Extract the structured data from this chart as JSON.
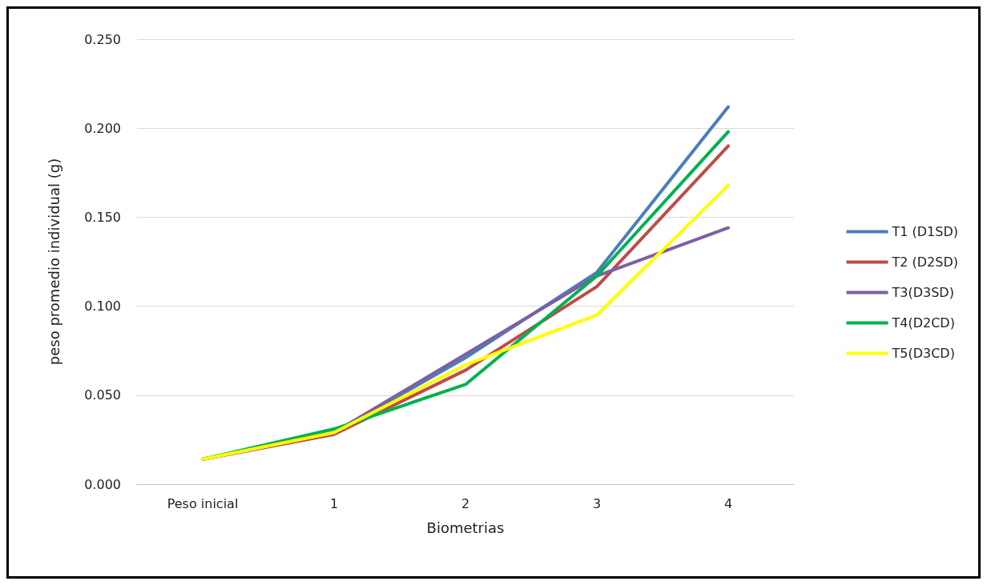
{
  "chart_data": {
    "type": "line",
    "xlabel": "Biometrias",
    "ylabel": "peso promedio individual (g)",
    "categories": [
      "Peso inicial",
      "1",
      "2",
      "3",
      "4"
    ],
    "series": [
      {
        "name": "T1 (D1SD)",
        "color": "#4a7ebb",
        "values": [
          0.014,
          0.029,
          0.071,
          0.119,
          0.212
        ]
      },
      {
        "name": "T2 (D2SD)",
        "color": "#be4b48",
        "values": [
          0.014,
          0.028,
          0.064,
          0.111,
          0.19
        ]
      },
      {
        "name": "T3(D3SD)",
        "color": "#7d60a0",
        "values": [
          0.014,
          0.029,
          0.073,
          0.117,
          0.144
        ]
      },
      {
        "name": "T4(D2CD)",
        "color": "#00b050",
        "values": [
          0.014,
          0.031,
          0.056,
          0.117,
          0.198
        ]
      },
      {
        "name": "T5(D3CD)",
        "color": "#ffff00",
        "values": [
          0.014,
          0.029,
          0.067,
          0.095,
          0.168
        ]
      }
    ],
    "ylim": [
      0,
      0.25
    ],
    "yticks": [
      {
        "value": 0,
        "label": "0.000"
      },
      {
        "value": 0.05,
        "label": "0.050"
      },
      {
        "value": 0.1,
        "label": "0.100"
      },
      {
        "value": 0.15,
        "label": "0.150"
      },
      {
        "value": 0.2,
        "label": "0.200"
      },
      {
        "value": 0.25,
        "label": "0.250"
      }
    ],
    "grid": "y",
    "legend": "right",
    "marker": "none",
    "line_style": "solid"
  }
}
